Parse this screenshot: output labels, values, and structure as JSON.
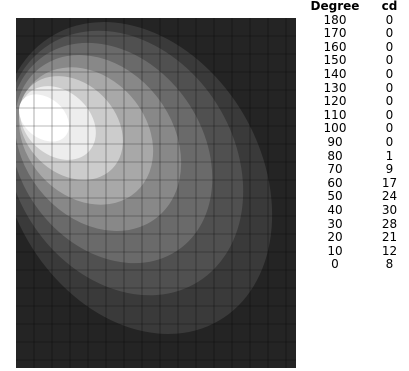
{
  "table": {
    "headers": {
      "degree": "Degree",
      "cd": "cd"
    },
    "rows": [
      {
        "degree": "180",
        "cd": "0"
      },
      {
        "degree": "170",
        "cd": "0"
      },
      {
        "degree": "160",
        "cd": "0"
      },
      {
        "degree": "150",
        "cd": "0"
      },
      {
        "degree": "140",
        "cd": "0"
      },
      {
        "degree": "130",
        "cd": "0"
      },
      {
        "degree": "120",
        "cd": "0"
      },
      {
        "degree": "110",
        "cd": "0"
      },
      {
        "degree": "100",
        "cd": "0"
      },
      {
        "degree": "90",
        "cd": "0"
      },
      {
        "degree": "80",
        "cd": "1"
      },
      {
        "degree": "70",
        "cd": "9"
      },
      {
        "degree": "60",
        "cd": "17"
      },
      {
        "degree": "50",
        "cd": "24"
      },
      {
        "degree": "40",
        "cd": "30"
      },
      {
        "degree": "30",
        "cd": "28"
      },
      {
        "degree": "20",
        "cd": "21"
      },
      {
        "degree": "10",
        "cd": "12"
      },
      {
        "degree": "0",
        "cd": "8"
      }
    ]
  },
  "field": {
    "background_color": "#242424",
    "grid_color": "#000000",
    "level_colors": [
      "#3a3a3a",
      "#505050",
      "#6a6a6a",
      "#888888",
      "#a8a8a8",
      "#cccccc",
      "#ededed",
      "#ffffff"
    ]
  }
}
